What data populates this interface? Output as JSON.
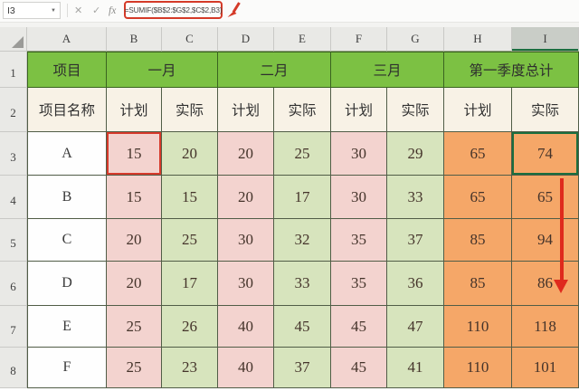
{
  "app": {
    "formula_bar": {
      "name_box_value": "I3",
      "dropdown_icon": "▼",
      "cancel_icon": "✕",
      "confirm_icon": "✓",
      "fx_icon": "fx",
      "formula": "=SUMIF($B$2:$G$2,$C$2,B3)"
    },
    "grid": {
      "column_letters": [
        "A",
        "B",
        "C",
        "D",
        "E",
        "F",
        "G",
        "H",
        "I"
      ],
      "selected_column_letter": "I",
      "row_numbers": [
        "1",
        "2",
        "3",
        "4",
        "5",
        "6",
        "7",
        "8"
      ],
      "month_headers": [
        {
          "label": "项目",
          "span": 1
        },
        {
          "label": "一月",
          "span": 2
        },
        {
          "label": "二月",
          "span": 2
        },
        {
          "label": "三月",
          "span": 2
        },
        {
          "label": "第一季度总计",
          "span": 2
        }
      ],
      "sub_headers": [
        "项目名称",
        "计划",
        "实际",
        "计划",
        "实际",
        "计划",
        "实际",
        "计划",
        "实际"
      ],
      "data_rows": [
        {
          "project": "A",
          "values": [
            "15",
            "20",
            "20",
            "25",
            "30",
            "29",
            "65",
            "74"
          ]
        },
        {
          "project": "B",
          "values": [
            "15",
            "15",
            "20",
            "17",
            "30",
            "33",
            "65",
            "65"
          ]
        },
        {
          "project": "C",
          "values": [
            "20",
            "25",
            "30",
            "32",
            "35",
            "37",
            "85",
            "94"
          ]
        },
        {
          "project": "D",
          "values": [
            "20",
            "17",
            "30",
            "33",
            "35",
            "36",
            "85",
            "86"
          ]
        },
        {
          "project": "E",
          "values": [
            "25",
            "26",
            "40",
            "45",
            "45",
            "47",
            "110",
            "118"
          ]
        },
        {
          "project": "F",
          "values": [
            "25",
            "23",
            "40",
            "37",
            "45",
            "41",
            "110",
            "101"
          ]
        }
      ],
      "highlighted_cell_red": "B3",
      "active_cell": "I3"
    },
    "colors": {
      "header_green": "#7cc143",
      "plan_pink": "#f3d3cf",
      "actual_green": "#d7e4bd",
      "total_orange": "#f5a768",
      "subheader_cream": "#f8f2e6",
      "annotation_red": "#df2a1d",
      "selection_green": "#1b6e3f"
    }
  }
}
